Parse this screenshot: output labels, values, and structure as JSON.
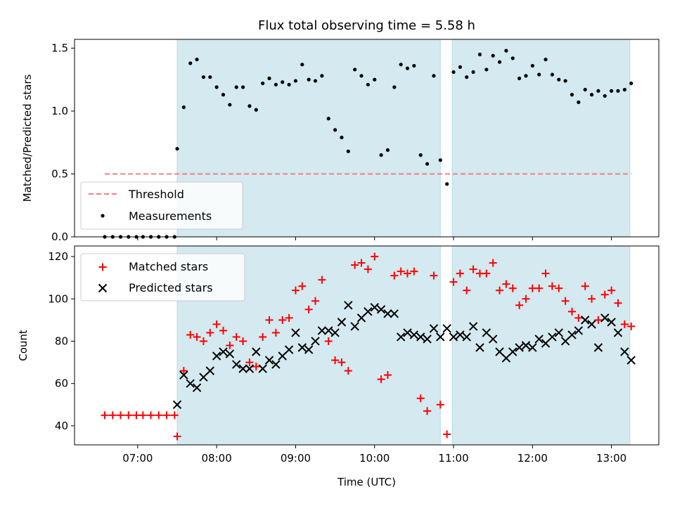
{
  "chart_data": [
    {
      "type": "scatter",
      "title": "Flux total observing time = 5.58 h",
      "xlabel": "",
      "ylabel": "Matched/Predicted stars",
      "x_unit": "time UTC (HH:MM)",
      "ylim": [
        0,
        1.57
      ],
      "yticks": [
        0,
        0.5,
        1.0,
        1.5
      ],
      "ytick_labels": [
        "0.0",
        "0.5",
        "1.0",
        "1.5"
      ],
      "grid": false,
      "legend_position": "lower-left",
      "observing_windows": [
        [
          "07:30",
          "10:50"
        ],
        [
          "10:59",
          "13:14"
        ]
      ],
      "window_color": "#d4e9f0",
      "threshold": {
        "name": "Threshold",
        "value": 0.5,
        "x_range": [
          "06:35",
          "13:15"
        ],
        "color": "#f08080",
        "style": "dashed"
      },
      "series": [
        {
          "name": "Measurements",
          "marker": "dot",
          "color": "#000000",
          "points": [
            [
              "06:35",
              0
            ],
            [
              "06:41",
              0
            ],
            [
              "06:47",
              0
            ],
            [
              "06:53",
              0
            ],
            [
              "06:59",
              0
            ],
            [
              "07:04",
              0
            ],
            [
              "07:10",
              0
            ],
            [
              "07:16",
              0
            ],
            [
              "07:22",
              0
            ],
            [
              "07:28",
              0
            ],
            [
              "07:30",
              0.7
            ],
            [
              "07:35",
              1.03
            ],
            [
              "07:40",
              1.38
            ],
            [
              "07:45",
              1.41
            ],
            [
              "07:50",
              1.27
            ],
            [
              "07:55",
              1.27
            ],
            [
              "08:00",
              1.19
            ],
            [
              "08:05",
              1.13
            ],
            [
              "08:10",
              1.05
            ],
            [
              "08:15",
              1.19
            ],
            [
              "08:20",
              1.19
            ],
            [
              "08:25",
              1.04
            ],
            [
              "08:30",
              1.01
            ],
            [
              "08:35",
              1.22
            ],
            [
              "08:40",
              1.26
            ],
            [
              "08:45",
              1.21
            ],
            [
              "08:50",
              1.23
            ],
            [
              "08:55",
              1.21
            ],
            [
              "09:00",
              1.24
            ],
            [
              "09:05",
              1.37
            ],
            [
              "09:10",
              1.25
            ],
            [
              "09:15",
              1.24
            ],
            [
              "09:20",
              1.28
            ],
            [
              "09:25",
              0.94
            ],
            [
              "09:30",
              0.85
            ],
            [
              "09:35",
              0.79
            ],
            [
              "09:40",
              0.68
            ],
            [
              "09:45",
              1.33
            ],
            [
              "09:50",
              1.28
            ],
            [
              "09:55",
              1.21
            ],
            [
              "10:00",
              1.25
            ],
            [
              "10:05",
              0.65
            ],
            [
              "10:10",
              0.69
            ],
            [
              "10:15",
              1.19
            ],
            [
              "10:20",
              1.37
            ],
            [
              "10:25",
              1.34
            ],
            [
              "10:30",
              1.36
            ],
            [
              "10:35",
              0.65
            ],
            [
              "10:40",
              0.58
            ],
            [
              "10:45",
              1.28
            ],
            [
              "10:50",
              0.61
            ],
            [
              "10:55",
              0.42
            ],
            [
              "11:00",
              1.31
            ],
            [
              "11:05",
              1.35
            ],
            [
              "11:10",
              1.27
            ],
            [
              "11:15",
              1.31
            ],
            [
              "11:20",
              1.45
            ],
            [
              "11:25",
              1.33
            ],
            [
              "11:30",
              1.44
            ],
            [
              "11:35",
              1.39
            ],
            [
              "11:40",
              1.48
            ],
            [
              "11:45",
              1.42
            ],
            [
              "11:50",
              1.26
            ],
            [
              "11:55",
              1.28
            ],
            [
              "12:00",
              1.36
            ],
            [
              "12:05",
              1.29
            ],
            [
              "12:10",
              1.41
            ],
            [
              "12:15",
              1.29
            ],
            [
              "12:20",
              1.25
            ],
            [
              "12:25",
              1.24
            ],
            [
              "12:30",
              1.13
            ],
            [
              "12:35",
              1.07
            ],
            [
              "12:40",
              1.17
            ],
            [
              "12:45",
              1.13
            ],
            [
              "12:50",
              1.16
            ],
            [
              "12:55",
              1.12
            ],
            [
              "13:00",
              1.16
            ],
            [
              "13:05",
              1.16
            ],
            [
              "13:10",
              1.17
            ],
            [
              "13:15",
              1.22
            ]
          ]
        }
      ]
    },
    {
      "type": "scatter",
      "title": "",
      "xlabel": "Time (UTC)",
      "ylabel": "Count",
      "ylim": [
        31,
        125
      ],
      "yticks": [
        40,
        60,
        80,
        100,
        120
      ],
      "xticks": [
        "07:00",
        "08:00",
        "09:00",
        "10:00",
        "11:00",
        "12:00",
        "13:00"
      ],
      "grid": false,
      "legend_position": "upper-left",
      "series": [
        {
          "name": "Matched stars",
          "marker": "plus",
          "color": "#ff0000",
          "points": [
            [
              "06:35",
              45
            ],
            [
              "06:41",
              45
            ],
            [
              "06:47",
              45
            ],
            [
              "06:53",
              45
            ],
            [
              "06:59",
              45
            ],
            [
              "07:04",
              45
            ],
            [
              "07:10",
              45
            ],
            [
              "07:16",
              45
            ],
            [
              "07:22",
              45
            ],
            [
              "07:28",
              45
            ],
            [
              "07:30",
              35
            ],
            [
              "07:35",
              66
            ],
            [
              "07:40",
              83
            ],
            [
              "07:45",
              82
            ],
            [
              "07:50",
              80
            ],
            [
              "07:55",
              84
            ],
            [
              "08:00",
              88
            ],
            [
              "08:05",
              85
            ],
            [
              "08:10",
              78
            ],
            [
              "08:15",
              82
            ],
            [
              "08:20",
              80
            ],
            [
              "08:25",
              70
            ],
            [
              "08:30",
              68
            ],
            [
              "08:35",
              82
            ],
            [
              "08:40",
              90
            ],
            [
              "08:45",
              84
            ],
            [
              "08:50",
              90
            ],
            [
              "08:55",
              91
            ],
            [
              "09:00",
              104
            ],
            [
              "09:05",
              106
            ],
            [
              "09:10",
              95
            ],
            [
              "09:15",
              99
            ],
            [
              "09:20",
              109
            ],
            [
              "09:25",
              80
            ],
            [
              "09:30",
              71
            ],
            [
              "09:35",
              70
            ],
            [
              "09:40",
              66
            ],
            [
              "09:45",
              116
            ],
            [
              "09:50",
              117
            ],
            [
              "09:55",
              114
            ],
            [
              "10:00",
              120
            ],
            [
              "10:05",
              62
            ],
            [
              "10:10",
              64
            ],
            [
              "10:15",
              111
            ],
            [
              "10:20",
              113
            ],
            [
              "10:25",
              112
            ],
            [
              "10:30",
              113
            ],
            [
              "10:35",
              53
            ],
            [
              "10:40",
              47
            ],
            [
              "10:45",
              111
            ],
            [
              "10:50",
              50
            ],
            [
              "10:55",
              36
            ],
            [
              "11:00",
              108
            ],
            [
              "11:05",
              112
            ],
            [
              "11:10",
              104
            ],
            [
              "11:15",
              114
            ],
            [
              "11:20",
              112
            ],
            [
              "11:25",
              112
            ],
            [
              "11:30",
              117
            ],
            [
              "11:35",
              104
            ],
            [
              "11:40",
              107
            ],
            [
              "11:45",
              105
            ],
            [
              "11:50",
              97
            ],
            [
              "11:55",
              100
            ],
            [
              "12:00",
              105
            ],
            [
              "12:05",
              105
            ],
            [
              "12:10",
              112
            ],
            [
              "12:15",
              106
            ],
            [
              "12:20",
              105
            ],
            [
              "12:25",
              99
            ],
            [
              "12:30",
              94
            ],
            [
              "12:35",
              91
            ],
            [
              "12:40",
              106
            ],
            [
              "12:45",
              100
            ],
            [
              "12:50",
              90
            ],
            [
              "12:55",
              102
            ],
            [
              "13:00",
              104
            ],
            [
              "13:05",
              98
            ],
            [
              "13:10",
              88
            ],
            [
              "13:15",
              87
            ]
          ]
        },
        {
          "name": "Predicted stars",
          "marker": "x",
          "color": "#000000",
          "points": [
            [
              "07:30",
              50
            ],
            [
              "07:35",
              64
            ],
            [
              "07:40",
              60
            ],
            [
              "07:45",
              58
            ],
            [
              "07:50",
              63
            ],
            [
              "07:55",
              66
            ],
            [
              "08:00",
              73
            ],
            [
              "08:05",
              75
            ],
            [
              "08:10",
              74
            ],
            [
              "08:15",
              69
            ],
            [
              "08:20",
              67
            ],
            [
              "08:25",
              67
            ],
            [
              "08:30",
              75
            ],
            [
              "08:35",
              67
            ],
            [
              "08:40",
              71
            ],
            [
              "08:45",
              69
            ],
            [
              "08:50",
              73
            ],
            [
              "08:55",
              76
            ],
            [
              "09:00",
              84
            ],
            [
              "09:05",
              77
            ],
            [
              "09:10",
              76
            ],
            [
              "09:15",
              80
            ],
            [
              "09:20",
              85
            ],
            [
              "09:25",
              85
            ],
            [
              "09:30",
              84
            ],
            [
              "09:35",
              89
            ],
            [
              "09:40",
              97
            ],
            [
              "09:45",
              87
            ],
            [
              "09:50",
              91
            ],
            [
              "09:55",
              94
            ],
            [
              "10:00",
              96
            ],
            [
              "10:05",
              95
            ],
            [
              "10:10",
              93
            ],
            [
              "10:15",
              93
            ],
            [
              "10:20",
              82
            ],
            [
              "10:25",
              84
            ],
            [
              "10:30",
              83
            ],
            [
              "10:35",
              82
            ],
            [
              "10:40",
              81
            ],
            [
              "10:45",
              86
            ],
            [
              "10:50",
              82
            ],
            [
              "10:55",
              86
            ],
            [
              "11:00",
              82
            ],
            [
              "11:05",
              83
            ],
            [
              "11:10",
              82
            ],
            [
              "11:15",
              87
            ],
            [
              "11:20",
              77
            ],
            [
              "11:25",
              84
            ],
            [
              "11:30",
              81
            ],
            [
              "11:35",
              75
            ],
            [
              "11:40",
              72
            ],
            [
              "11:45",
              75
            ],
            [
              "11:50",
              77
            ],
            [
              "11:55",
              78
            ],
            [
              "12:00",
              77
            ],
            [
              "12:05",
              81
            ],
            [
              "12:10",
              79
            ],
            [
              "12:15",
              82
            ],
            [
              "12:20",
              84
            ],
            [
              "12:25",
              80
            ],
            [
              "12:30",
              83
            ],
            [
              "12:35",
              85
            ],
            [
              "12:40",
              90
            ],
            [
              "12:45",
              88
            ],
            [
              "12:50",
              77
            ],
            [
              "12:55",
              91
            ],
            [
              "13:00",
              89
            ],
            [
              "13:05",
              84
            ],
            [
              "13:10",
              75
            ],
            [
              "13:15",
              71
            ]
          ]
        }
      ]
    }
  ]
}
